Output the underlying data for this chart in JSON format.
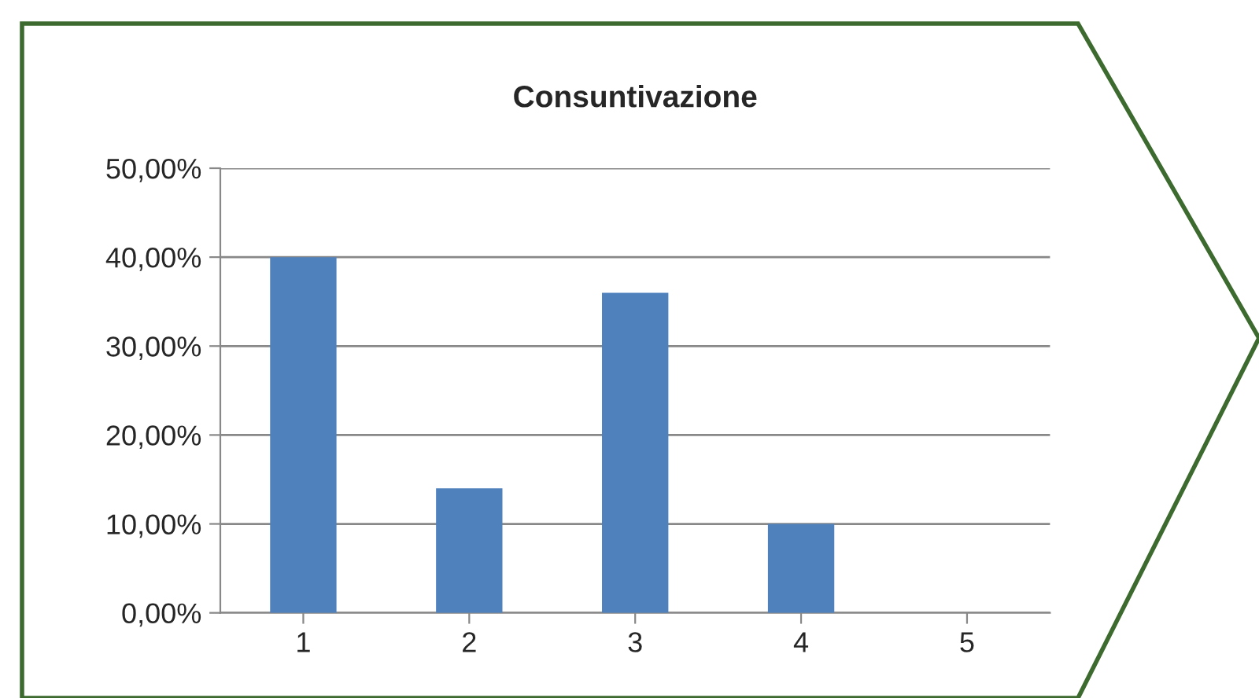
{
  "chart_data": {
    "type": "bar",
    "title": "Consuntivazione",
    "categories": [
      "1",
      "2",
      "3",
      "4",
      "5"
    ],
    "values": [
      40,
      14,
      36,
      10,
      0
    ],
    "color": "#4f81bd",
    "ylim": [
      0,
      50
    ],
    "yticks": [
      {
        "value": 0,
        "label": "0,00%"
      },
      {
        "value": 10,
        "label": "10,00%"
      },
      {
        "value": 20,
        "label": "20,00%"
      },
      {
        "value": 30,
        "label": "30,00%"
      },
      {
        "value": 40,
        "label": "40,00%"
      },
      {
        "value": 50,
        "label": "50,00%"
      }
    ],
    "grid": "y"
  }
}
